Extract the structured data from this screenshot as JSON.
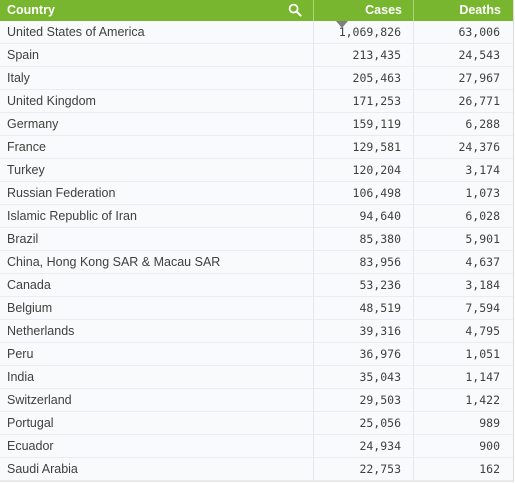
{
  "table": {
    "columns": {
      "country": "Country",
      "cases": "Cases",
      "deaths": "Deaths"
    },
    "sort": {
      "column": "cases",
      "direction": "descending"
    },
    "rows": [
      {
        "country": "United States of America",
        "cases": "1,069,826",
        "deaths": "63,006"
      },
      {
        "country": "Spain",
        "cases": "213,435",
        "deaths": "24,543"
      },
      {
        "country": "Italy",
        "cases": "205,463",
        "deaths": "27,967"
      },
      {
        "country": "United Kingdom",
        "cases": "171,253",
        "deaths": "26,771"
      },
      {
        "country": "Germany",
        "cases": "159,119",
        "deaths": "6,288"
      },
      {
        "country": "France",
        "cases": "129,581",
        "deaths": "24,376"
      },
      {
        "country": "Turkey",
        "cases": "120,204",
        "deaths": "3,174"
      },
      {
        "country": "Russian Federation",
        "cases": "106,498",
        "deaths": "1,073"
      },
      {
        "country": "Islamic Republic of Iran",
        "cases": "94,640",
        "deaths": "6,028"
      },
      {
        "country": "Brazil",
        "cases": "85,380",
        "deaths": "5,901"
      },
      {
        "country": "China, Hong Kong SAR & Macau SAR",
        "cases": "83,956",
        "deaths": "4,637"
      },
      {
        "country": "Canada",
        "cases": "53,236",
        "deaths": "3,184"
      },
      {
        "country": "Belgium",
        "cases": "48,519",
        "deaths": "7,594"
      },
      {
        "country": "Netherlands",
        "cases": "39,316",
        "deaths": "4,795"
      },
      {
        "country": "Peru",
        "cases": "36,976",
        "deaths": "1,051"
      },
      {
        "country": "India",
        "cases": "35,043",
        "deaths": "1,147"
      },
      {
        "country": "Switzerland",
        "cases": "29,503",
        "deaths": "1,422"
      },
      {
        "country": "Portugal",
        "cases": "25,056",
        "deaths": "989"
      },
      {
        "country": "Ecuador",
        "cases": "24,934",
        "deaths": "900"
      },
      {
        "country": "Saudi Arabia",
        "cases": "22,753",
        "deaths": "162"
      }
    ]
  },
  "icons": {
    "search": "search-icon",
    "sort": "sort-descending-icon"
  },
  "colors": {
    "header_bg": "#78b62f",
    "header_text": "#ffffff",
    "row_bg": "#f8fafb",
    "text": "#404040"
  }
}
